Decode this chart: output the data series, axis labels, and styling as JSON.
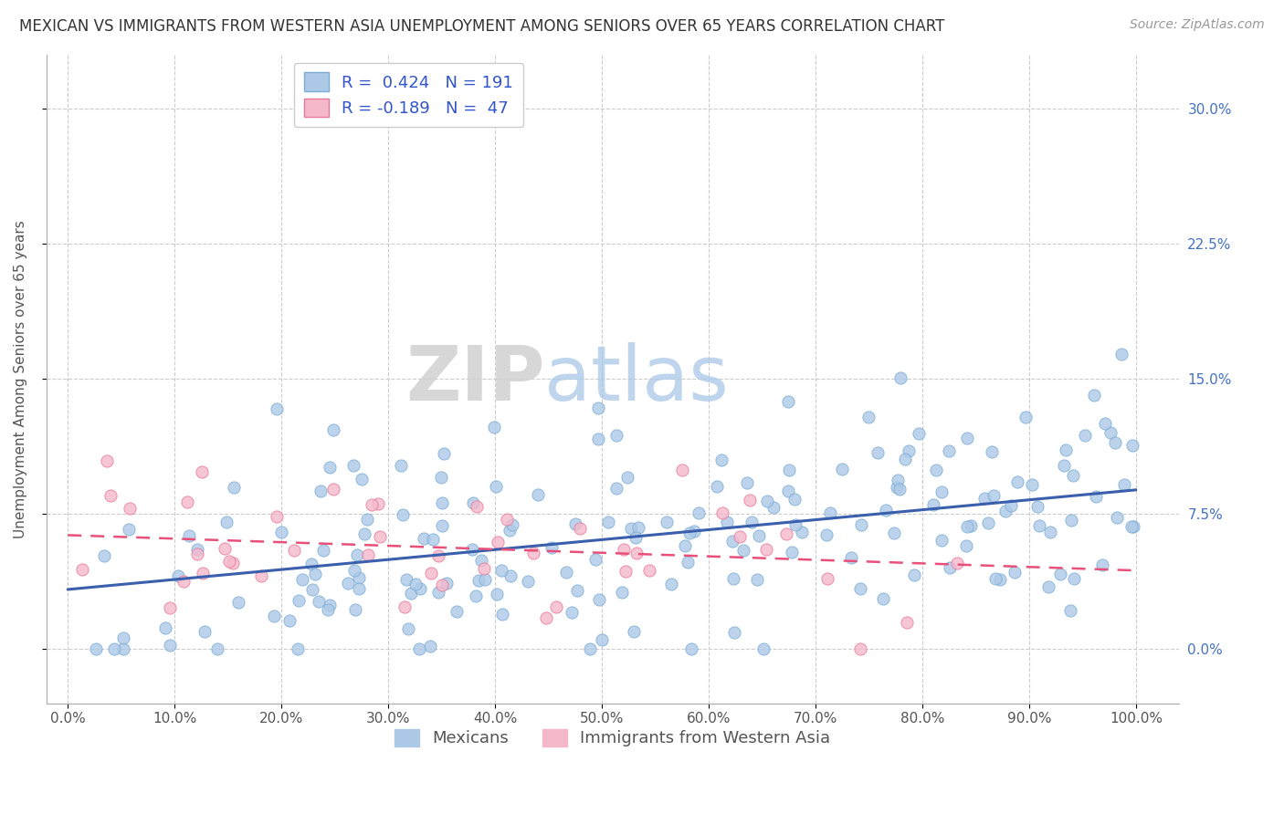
{
  "title": "MEXICAN VS IMMIGRANTS FROM WESTERN ASIA UNEMPLOYMENT AMONG SENIORS OVER 65 YEARS CORRELATION CHART",
  "source": "Source: ZipAtlas.com",
  "xlabel_vals": [
    0,
    10,
    20,
    30,
    40,
    50,
    60,
    70,
    80,
    90,
    100
  ],
  "ylabel_vals": [
    0,
    7.5,
    15.0,
    22.5,
    30.0
  ],
  "xlim": [
    -2,
    104
  ],
  "ylim": [
    -3,
    33
  ],
  "mexican_color": "#adc9e8",
  "mexican_edge_color": "#7aadd4",
  "western_asia_color": "#f5b8cb",
  "western_asia_edge_color": "#e8789a",
  "mexican_line_color": "#3a5fad",
  "western_asia_line_color": "#e8507a",
  "western_asia_line_dash": "--",
  "legend_r_mexican": "R =  0.424",
  "legend_n_mexican": "N = 191",
  "legend_r_western": "R = -0.189",
  "legend_n_western": "N =  47",
  "legend_label_mexican": "Mexicans",
  "legend_label_western": "Immigrants from Western Asia",
  "watermark_zip": "ZIP",
  "watermark_atlas": "atlas",
  "n_mexican": 191,
  "n_western": 47,
  "mexican_r": 0.424,
  "western_r": -0.189,
  "title_fontsize": 12,
  "source_fontsize": 10,
  "axis_label_fontsize": 11,
  "tick_fontsize": 11,
  "legend_fontsize": 13,
  "right_tick_color": "#4472c4"
}
